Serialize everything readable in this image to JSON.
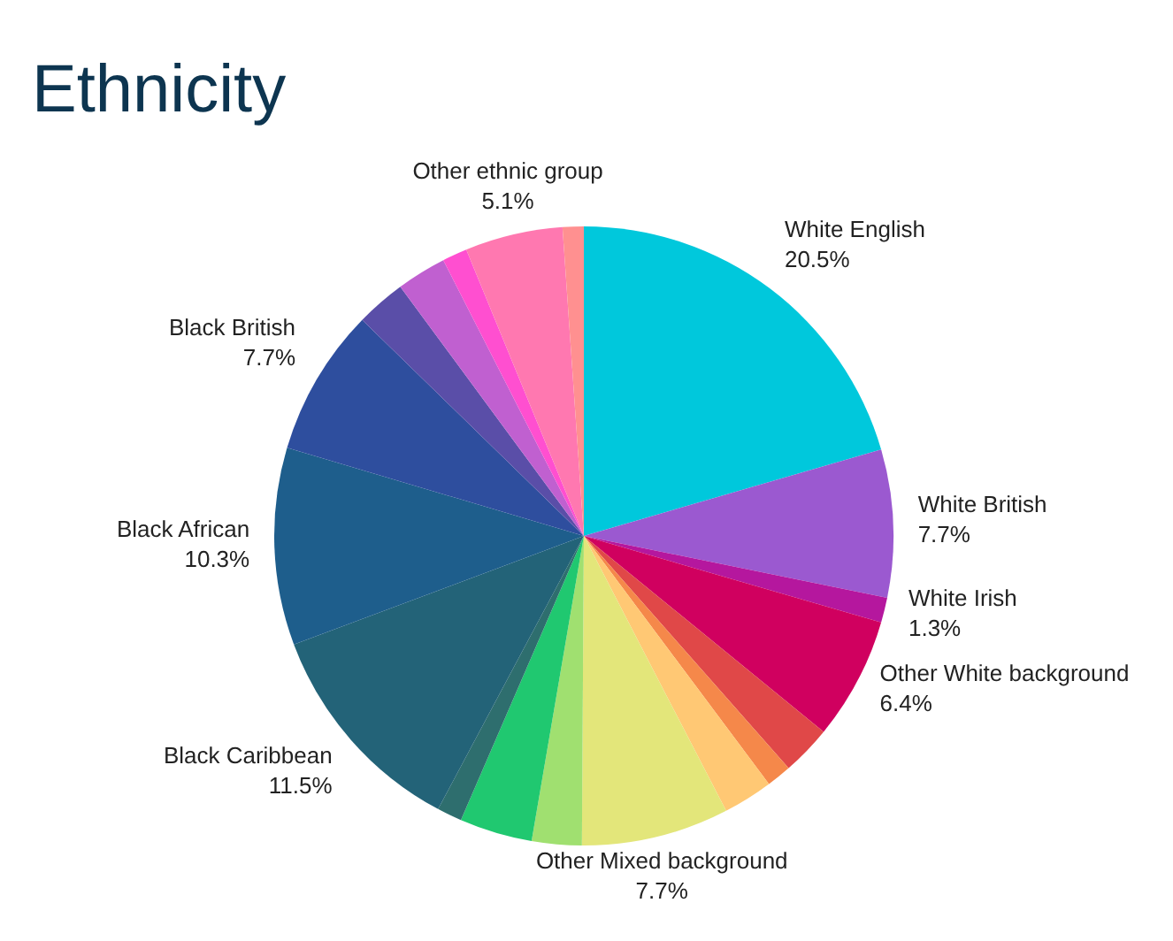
{
  "chart_data": {
    "type": "pie",
    "title": "Ethnicity",
    "categories": [
      "White English",
      "White British",
      "White Irish",
      "Other White background",
      null,
      null,
      null,
      "Other Mixed background",
      null,
      null,
      null,
      "Black Caribbean",
      "Black African",
      "Black British",
      null,
      null,
      null,
      "Other ethnic group",
      null
    ],
    "values": [
      20.5,
      7.7,
      1.3,
      6.4,
      2.6,
      1.3,
      2.6,
      7.7,
      2.6,
      3.8,
      1.3,
      11.5,
      10.3,
      7.7,
      2.6,
      2.6,
      1.3,
      5.1,
      1.1
    ],
    "value_labels": [
      "20.5%",
      "7.7%",
      "1.3%",
      "6.4%",
      null,
      null,
      null,
      "7.7%",
      null,
      null,
      null,
      "11.5%",
      "10.3%",
      "7.7%",
      null,
      null,
      null,
      "5.1%",
      null
    ],
    "colors": [
      "#00c8dc",
      "#9b59d0",
      "#b5179e",
      "#d0005f",
      "#e04848",
      "#f5884a",
      "#ffc874",
      "#e3e67a",
      "#a0e070",
      "#20c870",
      "#2e6e6e",
      "#236378",
      "#1e5e8c",
      "#2e4e9e",
      "#5a4ea8",
      "#c060d0",
      "#ff4fd0",
      "#ff78b0",
      "#ff9090"
    ],
    "legend": false
  }
}
